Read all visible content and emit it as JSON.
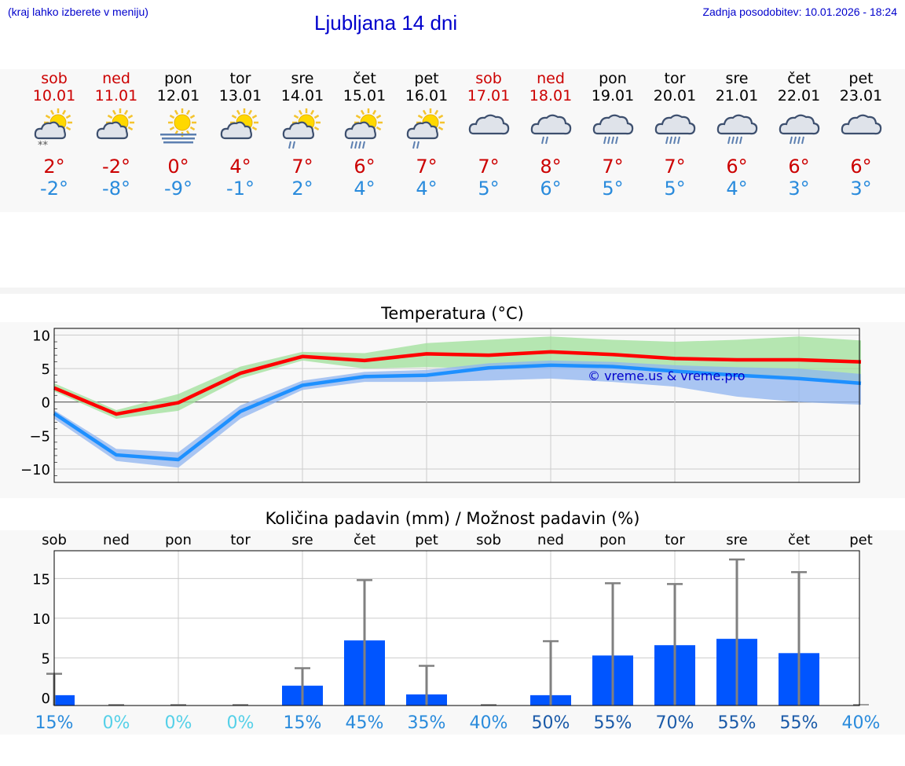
{
  "header": {
    "hint": "(kraj lahko izberete v meniju)",
    "title": "Ljubljana 14 dni",
    "updated": "Zadnja posodobitev: 10.01.2026 - 18:24"
  },
  "colors": {
    "weekend": "#cc0000",
    "weekday": "#000000",
    "max_temp": "#cc0000",
    "min_temp": "#2a8bdc",
    "max_line": "#ff0000",
    "min_line": "#1e90ff",
    "bar": "#0055ff",
    "watermark": "#0000cc"
  },
  "days": [
    {
      "name": "sob",
      "date": "10.01",
      "weekend": true,
      "icon": "partly-sunny-snow-icon",
      "max": "2°",
      "min": "-2°"
    },
    {
      "name": "ned",
      "date": "11.01",
      "weekend": true,
      "icon": "partly-sunny-icon",
      "max": "-2°",
      "min": "-8°"
    },
    {
      "name": "pon",
      "date": "12.01",
      "weekend": false,
      "icon": "sunny-fog-icon",
      "max": "0°",
      "min": "-9°"
    },
    {
      "name": "tor",
      "date": "13.01",
      "weekend": false,
      "icon": "partly-sunny-icon",
      "max": "4°",
      "min": "-1°"
    },
    {
      "name": "sre",
      "date": "14.01",
      "weekend": false,
      "icon": "partly-sunny-light-rain-icon",
      "max": "7°",
      "min": "2°"
    },
    {
      "name": "čet",
      "date": "15.01",
      "weekend": false,
      "icon": "partly-sunny-rain-icon",
      "max": "6°",
      "min": "4°"
    },
    {
      "name": "pet",
      "date": "16.01",
      "weekend": false,
      "icon": "partly-sunny-light-rain-icon",
      "max": "7°",
      "min": "4°"
    },
    {
      "name": "sob",
      "date": "17.01",
      "weekend": true,
      "icon": "cloudy-icon",
      "max": "7°",
      "min": "5°"
    },
    {
      "name": "ned",
      "date": "18.01",
      "weekend": true,
      "icon": "cloudy-light-rain-icon",
      "max": "8°",
      "min": "6°"
    },
    {
      "name": "pon",
      "date": "19.01",
      "weekend": false,
      "icon": "cloudy-rain-icon",
      "max": "7°",
      "min": "5°"
    },
    {
      "name": "tor",
      "date": "20.01",
      "weekend": false,
      "icon": "cloudy-rain-icon",
      "max": "7°",
      "min": "5°"
    },
    {
      "name": "sre",
      "date": "21.01",
      "weekend": false,
      "icon": "cloudy-rain-icon",
      "max": "6°",
      "min": "4°"
    },
    {
      "name": "čet",
      "date": "22.01",
      "weekend": false,
      "icon": "cloudy-rain-icon",
      "max": "6°",
      "min": "3°"
    },
    {
      "name": "pet",
      "date": "23.01",
      "weekend": false,
      "icon": "cloudy-icon",
      "max": "6°",
      "min": "3°"
    }
  ],
  "chart_data": [
    {
      "type": "line",
      "title": "Temperatura (°C)",
      "ylim": [
        -12,
        11
      ],
      "yticks": [
        10,
        5,
        0,
        -5,
        -10
      ],
      "ytick_labels": [
        "10",
        "5",
        "0",
        "−5",
        "−10"
      ],
      "grid": true,
      "watermark": "© vreme.us & vreme.pro",
      "x": [
        0,
        1,
        2,
        3,
        4,
        5,
        6,
        7,
        8,
        9,
        10,
        11,
        12,
        13
      ],
      "series": [
        {
          "role": "max",
          "color": "#ff0000",
          "values": [
            2.1,
            -1.8,
            -0.1,
            4.3,
            6.8,
            6.2,
            7.2,
            7.0,
            7.5,
            7.1,
            6.5,
            6.3,
            6.3,
            6.0
          ],
          "band_low": [
            1.6,
            -2.5,
            -1.3,
            3.5,
            6.2,
            5.0,
            5.2,
            5.0,
            5.5,
            5.2,
            4.5,
            3.8,
            3.5,
            3.0
          ],
          "band_high": [
            2.8,
            -1.2,
            1.2,
            5.3,
            7.5,
            7.3,
            8.8,
            9.3,
            9.8,
            9.3,
            9.0,
            9.3,
            9.8,
            9.2
          ]
        },
        {
          "role": "min",
          "color": "#1e90ff",
          "values": [
            -1.7,
            -7.9,
            -8.6,
            -1.4,
            2.5,
            3.8,
            4.0,
            5.1,
            5.5,
            5.3,
            4.6,
            4.0,
            3.5,
            2.8
          ],
          "band_low": [
            -2.5,
            -8.8,
            -9.8,
            -2.5,
            1.8,
            3.0,
            3.0,
            3.2,
            3.5,
            3.0,
            2.3,
            0.8,
            0.0,
            -0.4
          ],
          "band_high": [
            -1.2,
            -7.0,
            -7.5,
            -0.5,
            3.2,
            4.5,
            4.8,
            5.8,
            6.2,
            6.0,
            5.5,
            5.2,
            5.0,
            4.2
          ]
        }
      ]
    },
    {
      "type": "bar",
      "title": "Količina padavin (mm) / Možnost padavin (%)",
      "categories": [
        "sob",
        "ned",
        "pon",
        "tor",
        "sre",
        "čet",
        "pet",
        "sob",
        "ned",
        "pon",
        "tor",
        "sre",
        "čet",
        "pet"
      ],
      "values": [
        0.3,
        0,
        0,
        0,
        1.5,
        7.2,
        0.4,
        0,
        0.3,
        5.3,
        6.6,
        7.4,
        5.6,
        0
      ],
      "error_high": [
        3.0,
        0,
        0,
        0,
        3.7,
        14.8,
        4.0,
        0,
        7.1,
        14.4,
        14.3,
        17.4,
        15.8,
        0
      ],
      "probability": [
        "15%",
        "0%",
        "0%",
        "0%",
        "15%",
        "45%",
        "35%",
        "40%",
        "50%",
        "55%",
        "70%",
        "55%",
        "55%",
        "40%"
      ],
      "probability_values": [
        15,
        0,
        0,
        0,
        15,
        45,
        35,
        40,
        50,
        55,
        70,
        55,
        55,
        40
      ],
      "ylim": [
        -1,
        18.5
      ],
      "yticks": [
        0,
        5,
        10,
        15
      ],
      "ytick_labels": [
        "0",
        "5",
        "10",
        "15"
      ],
      "grid": true
    }
  ]
}
